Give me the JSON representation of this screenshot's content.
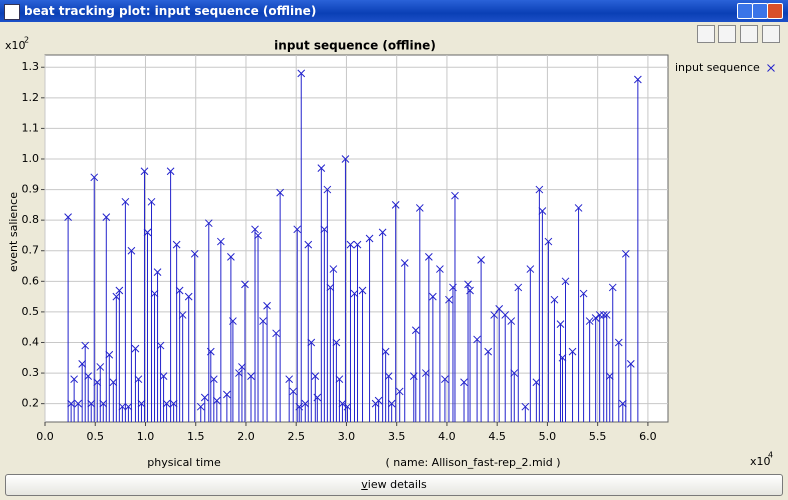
{
  "window": {
    "title": "beat tracking plot: input sequence (offline)",
    "button": "view details"
  },
  "chart_data": {
    "type": "stem",
    "title": "input sequence (offline)",
    "xlabel": "physical time",
    "annotation": "( name: Allison_fast-rep_2.mid )",
    "ylabel": "event salience",
    "x_multiplier": {
      "text": "x10",
      "exponent": "4"
    },
    "y_multiplier": {
      "text": "x10",
      "exponent": "2"
    },
    "xlim": [
      0,
      6.2
    ],
    "ylim": [
      0.14,
      1.34
    ],
    "xticks": [
      {
        "value": 0,
        "label": "0.0"
      },
      0.5,
      {
        "value": 1,
        "label": "1.0"
      },
      1.5,
      {
        "value": 2,
        "label": "2.0"
      },
      2.5,
      {
        "value": 3,
        "label": "3.0"
      },
      3.5,
      {
        "value": 4,
        "label": "4.0"
      },
      4.5,
      {
        "value": 5,
        "label": "5.0"
      },
      5.5,
      {
        "value": 6,
        "label": "6.0"
      }
    ],
    "yticks": [
      0.2,
      0.3,
      0.4,
      0.5,
      0.6,
      0.7,
      0.8,
      0.9,
      {
        "value": 1,
        "label": "1.0"
      },
      1.1,
      1.2,
      1.3
    ],
    "grid": true,
    "legend": "upper right",
    "series": [
      {
        "name": "input sequence",
        "color": "#2222cc",
        "x": [
          0.23,
          0.26,
          0.29,
          0.33,
          0.37,
          0.4,
          0.43,
          0.46,
          0.49,
          0.52,
          0.55,
          0.58,
          0.61,
          0.64,
          0.68,
          0.71,
          0.74,
          0.77,
          0.8,
          0.83,
          0.86,
          0.9,
          0.93,
          0.96,
          0.99,
          1.02,
          1.06,
          1.09,
          1.12,
          1.15,
          1.18,
          1.21,
          1.25,
          1.28,
          1.31,
          1.34,
          1.37,
          1.43,
          1.49,
          1.55,
          1.59,
          1.63,
          1.65,
          1.68,
          1.71,
          1.75,
          1.81,
          1.85,
          1.87,
          1.93,
          1.96,
          1.99,
          2.05,
          2.09,
          2.12,
          2.17,
          2.21,
          2.3,
          2.34,
          2.43,
          2.47,
          2.51,
          2.53,
          2.55,
          2.59,
          2.62,
          2.65,
          2.69,
          2.71,
          2.75,
          2.78,
          2.81,
          2.84,
          2.87,
          2.9,
          2.93,
          2.96,
          2.99,
          3.01,
          3.04,
          3.08,
          3.11,
          3.16,
          3.23,
          3.29,
          3.32,
          3.36,
          3.39,
          3.42,
          3.45,
          3.49,
          3.53,
          3.58,
          3.67,
          3.69,
          3.73,
          3.79,
          3.82,
          3.86,
          3.93,
          3.98,
          4.02,
          4.06,
          4.08,
          4.17,
          4.21,
          4.23,
          4.3,
          4.34,
          4.41,
          4.47,
          4.52,
          4.58,
          4.64,
          4.67,
          4.71,
          4.78,
          4.83,
          4.89,
          4.92,
          4.95,
          5.01,
          5.07,
          5.13,
          5.15,
          5.18,
          5.25,
          5.31,
          5.36,
          5.42,
          5.48,
          5.52,
          5.56,
          5.59,
          5.62,
          5.65,
          5.71,
          5.75,
          5.78,
          5.83,
          5.9
        ],
        "values": [
          0.81,
          0.2,
          0.28,
          0.2,
          0.33,
          0.39,
          0.29,
          0.2,
          0.94,
          0.27,
          0.32,
          0.2,
          0.81,
          0.36,
          0.27,
          0.55,
          0.57,
          0.19,
          0.86,
          0.19,
          0.7,
          0.38,
          0.28,
          0.2,
          0.96,
          0.76,
          0.86,
          0.56,
          0.63,
          0.39,
          0.29,
          0.2,
          0.96,
          0.2,
          0.72,
          0.57,
          0.49,
          0.55,
          0.69,
          0.19,
          0.22,
          0.79,
          0.37,
          0.28,
          0.21,
          0.73,
          0.23,
          0.68,
          0.47,
          0.3,
          0.32,
          0.59,
          0.29,
          0.77,
          0.75,
          0.47,
          0.52,
          0.43,
          0.89,
          0.28,
          0.24,
          0.77,
          0.19,
          1.28,
          0.2,
          0.72,
          0.4,
          0.29,
          0.22,
          0.97,
          0.77,
          0.9,
          0.58,
          0.64,
          0.4,
          0.28,
          0.2,
          1.0,
          0.19,
          0.72,
          0.56,
          0.72,
          0.57,
          0.74,
          0.2,
          0.21,
          0.76,
          0.37,
          0.29,
          0.2,
          0.85,
          0.24,
          0.66,
          0.29,
          0.44,
          0.84,
          0.3,
          0.68,
          0.55,
          0.64,
          0.28,
          0.54,
          0.58,
          0.88,
          0.27,
          0.59,
          0.57,
          0.41,
          0.67,
          0.37,
          0.49,
          0.51,
          0.49,
          0.47,
          0.3,
          0.58,
          0.19,
          0.64,
          0.27,
          0.9,
          0.83,
          0.73,
          0.54,
          0.46,
          0.35,
          0.6,
          0.37,
          0.84,
          0.56,
          0.47,
          0.48,
          0.49,
          0.49,
          0.49,
          0.29,
          0.58,
          0.4,
          0.2,
          0.69,
          0.33,
          1.26
        ]
      }
    ]
  }
}
